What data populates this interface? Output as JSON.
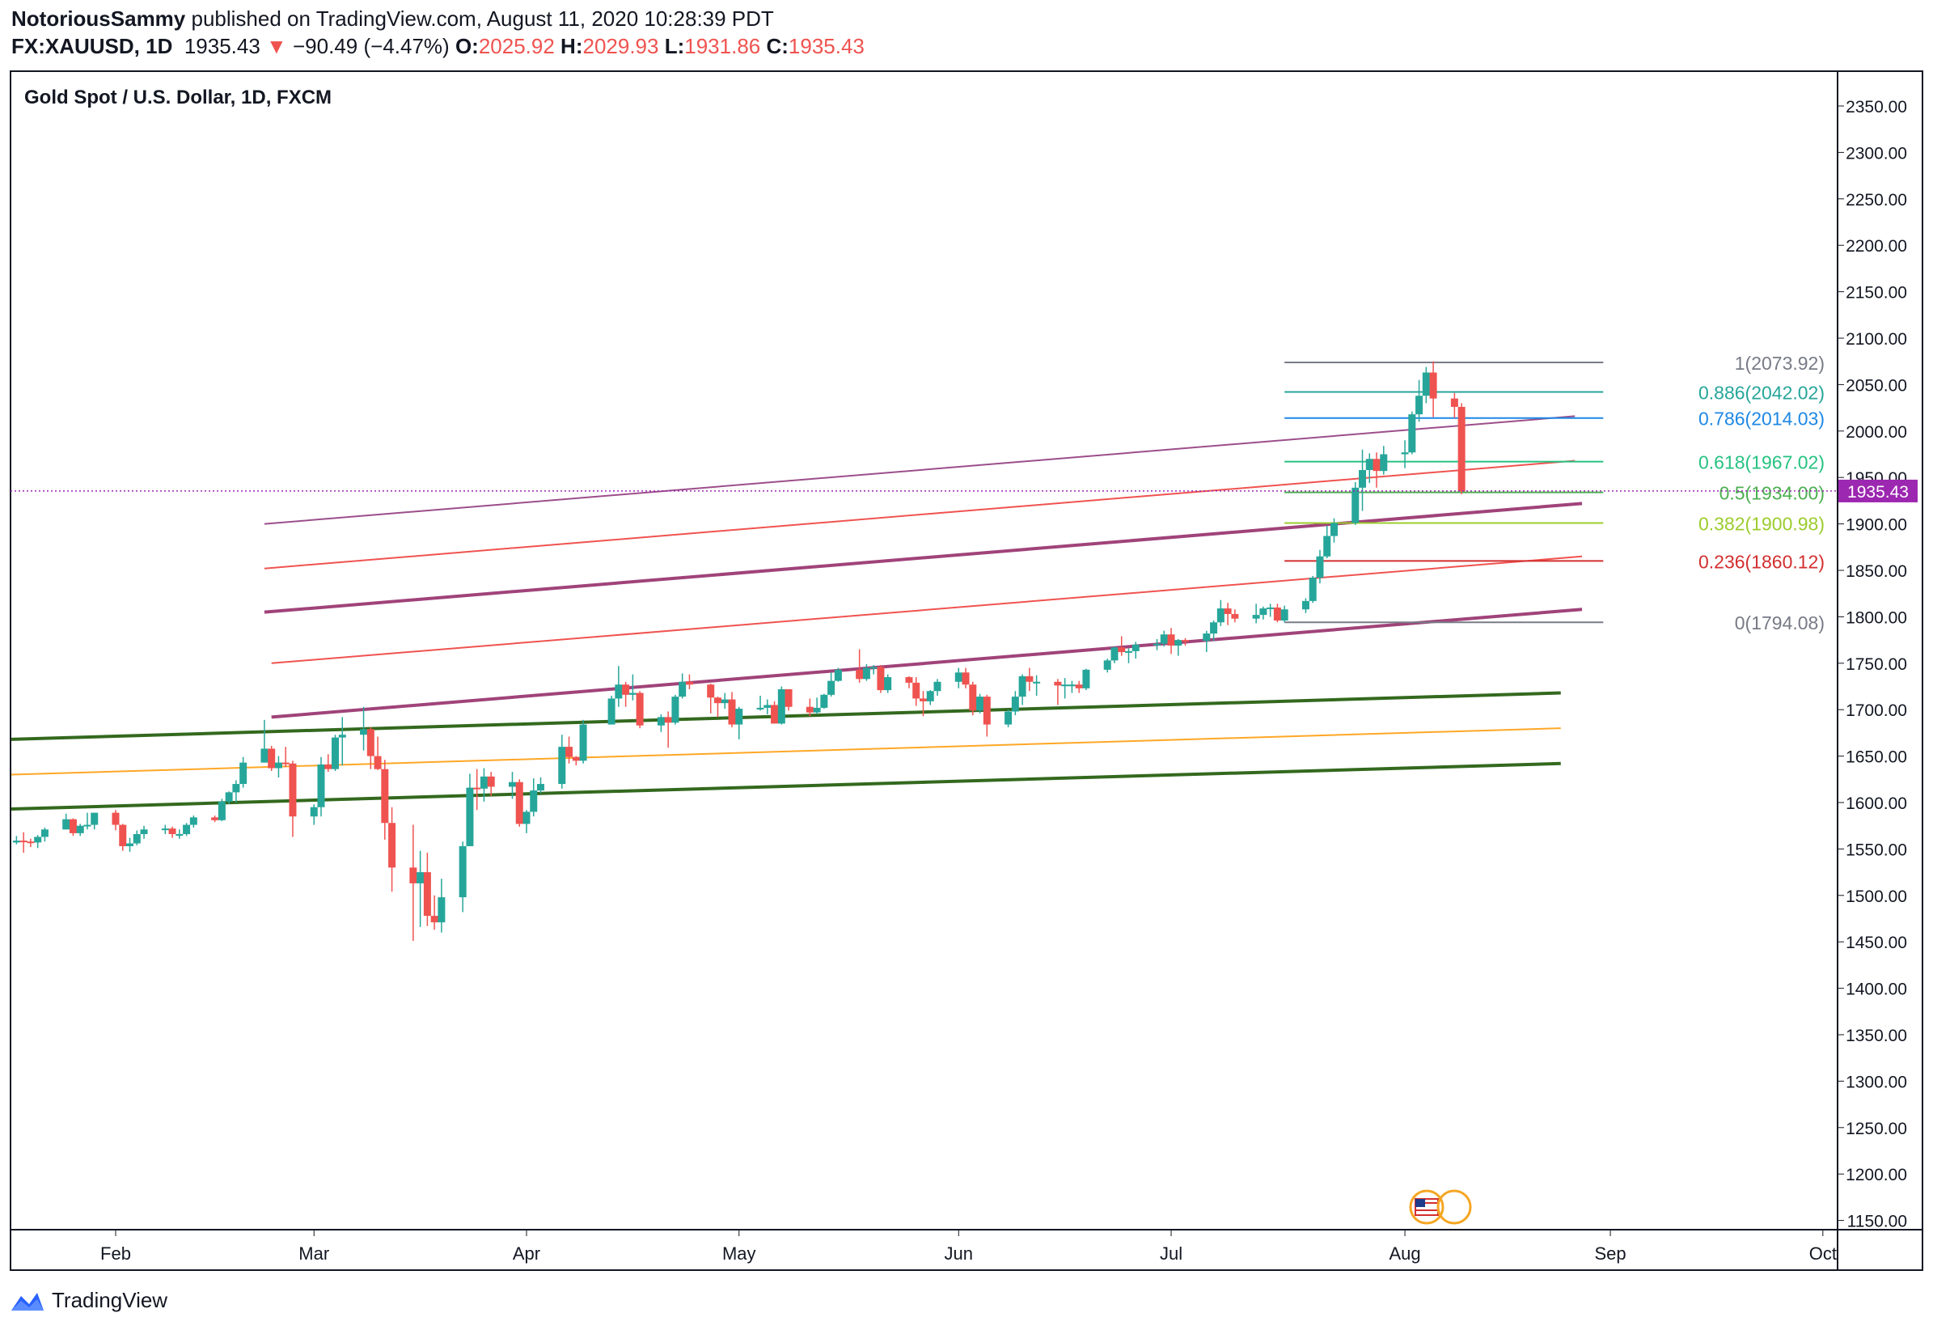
{
  "header": {
    "author": "NotoriousSammy",
    "published_text": "published on TradingView.com, August 11, 2020 10:28:39 PDT",
    "symbol_interval": "FX:XAUUSD, 1D",
    "last_price": "1935.43",
    "change_arrow": "▼",
    "change": "−90.49 (−4.47%)",
    "o_label": "O:",
    "o_value": "2025.92",
    "h_label": "H:",
    "h_value": "2029.93",
    "l_label": "L:",
    "l_value": "1931.86",
    "c_label": "C:",
    "c_value": "1935.43"
  },
  "footer": {
    "brand": "TradingView"
  },
  "colors": {
    "up": "#26a69a",
    "down": "#ef5350",
    "price_label": "#9c27b0",
    "accent": "#2962ff"
  },
  "chart_data": {
    "type": "candlestick",
    "title": "Gold Spot / U.S. Dollar, 1D, FXCM",
    "ylim": [
      1130,
      2380
    ],
    "y_ticks": [
      "2350.00",
      "2300.00",
      "2250.00",
      "2200.00",
      "2150.00",
      "2100.00",
      "2050.00",
      "2000.00",
      "1950.00",
      "1900.00",
      "1850.00",
      "1800.00",
      "1750.00",
      "1700.00",
      "1650.00",
      "1600.00",
      "1550.00",
      "1500.00",
      "1450.00",
      "1400.00",
      "1350.00",
      "1300.00",
      "1250.00",
      "1200.00",
      "1150.00"
    ],
    "x_ticks": [
      {
        "label": "Feb",
        "date": "2020-02-03"
      },
      {
        "label": "Mar",
        "date": "2020-03-02"
      },
      {
        "label": "Apr",
        "date": "2020-04-01"
      },
      {
        "label": "May",
        "date": "2020-05-01"
      },
      {
        "label": "Jun",
        "date": "2020-06-01"
      },
      {
        "label": "Jul",
        "date": "2020-07-01"
      },
      {
        "label": "Aug",
        "date": "2020-08-03"
      },
      {
        "label": "Sep",
        "date": "2020-09-01"
      },
      {
        "label": "Oct",
        "date": "2020-10-01"
      }
    ],
    "current_price": {
      "value": 1935.43,
      "label": "1935.43"
    },
    "fib_levels": [
      {
        "label": "1(2073.92)",
        "value": 2073.92,
        "color": "#787b86"
      },
      {
        "label": "0.886(2042.02)",
        "value": 2042.02,
        "color": "#26a69a"
      },
      {
        "label": "0.786(2014.03)",
        "value": 2014.03,
        "color": "#1e88e5"
      },
      {
        "label": "0.618(1967.02)",
        "value": 1967.02,
        "color": "#26c281"
      },
      {
        "label": "0.5(1934.00)",
        "value": 1934.0,
        "color": "#4caf50"
      },
      {
        "label": "0.382(1900.98)",
        "value": 1900.98,
        "color": "#9ccc2e"
      },
      {
        "label": "0.236(1860.12)",
        "value": 1860.12,
        "color": "#d32f2f"
      },
      {
        "label": "0(1794.08)",
        "value": 1794.08,
        "color": "#787b86"
      }
    ],
    "fib_range": {
      "start": "2020-07-17",
      "end": "2020-08-31"
    },
    "trend_lines": [
      {
        "from": [
          "2020-02-24",
          1900
        ],
        "to": [
          "2020-08-27",
          2016
        ],
        "color": "#9c4e8a",
        "width": 2
      },
      {
        "from": [
          "2020-02-24",
          1852
        ],
        "to": [
          "2020-08-27",
          1968
        ],
        "color": "#ef5350",
        "width": 2
      },
      {
        "from": [
          "2020-02-24",
          1805
        ],
        "to": [
          "2020-08-28",
          1922
        ],
        "color": "#a0437a",
        "width": 4
      },
      {
        "from": [
          "2020-02-25",
          1750
        ],
        "to": [
          "2020-08-28",
          1865
        ],
        "color": "#ef5350",
        "width": 2
      },
      {
        "from": [
          "2020-02-25",
          1692
        ],
        "to": [
          "2020-08-28",
          1808
        ],
        "color": "#a0437a",
        "width": 4
      },
      {
        "from": [
          "2020-01-01",
          1668
        ],
        "to": [
          "2020-08-25",
          1718
        ],
        "color": "#33691e",
        "width": 4
      },
      {
        "from": [
          "2020-01-01",
          1630
        ],
        "to": [
          "2020-08-25",
          1680
        ],
        "color": "#ffa726",
        "width": 2
      },
      {
        "from": [
          "2020-01-01",
          1593
        ],
        "to": [
          "2020-08-25",
          1642
        ],
        "color": "#33691e",
        "width": 4
      }
    ],
    "ohlc": [
      [
        "2020-01-02",
        1518,
        1529,
        1512,
        1527
      ],
      [
        "2020-01-03",
        1527,
        1553,
        1525,
        1551
      ],
      [
        "2020-01-06",
        1551,
        1575,
        1550,
        1567
      ],
      [
        "2020-01-07",
        1567,
        1576,
        1561,
        1573
      ],
      [
        "2020-01-08",
        1573,
        1611,
        1556,
        1556
      ],
      [
        "2020-01-09",
        1556,
        1559,
        1542,
        1552
      ],
      [
        "2020-01-10",
        1552,
        1562,
        1549,
        1560
      ],
      [
        "2020-01-13",
        1560,
        1562,
        1536,
        1547
      ],
      [
        "2020-01-14",
        1547,
        1549,
        1536,
        1545
      ],
      [
        "2020-01-15",
        1545,
        1559,
        1540,
        1555
      ],
      [
        "2020-01-16",
        1555,
        1558,
        1547,
        1551
      ],
      [
        "2020-01-17",
        1551,
        1562,
        1548,
        1557
      ],
      [
        "2020-01-20",
        1557,
        1564,
        1555,
        1559
      ],
      [
        "2020-01-21",
        1559,
        1568,
        1546,
        1558
      ],
      [
        "2020-01-22",
        1558,
        1561,
        1552,
        1557
      ],
      [
        "2020-01-23",
        1557,
        1565,
        1551,
        1563
      ],
      [
        "2020-01-24",
        1563,
        1573,
        1558,
        1571
      ],
      [
        "2020-01-27",
        1571,
        1588,
        1571,
        1582
      ],
      [
        "2020-01-28",
        1582,
        1583,
        1564,
        1567
      ],
      [
        "2020-01-29",
        1567,
        1577,
        1564,
        1575
      ],
      [
        "2020-01-30",
        1575,
        1589,
        1571,
        1576
      ],
      [
        "2020-01-31",
        1576,
        1589,
        1571,
        1589
      ],
      [
        "2020-02-03",
        1589,
        1592,
        1570,
        1576
      ],
      [
        "2020-02-04",
        1576,
        1577,
        1548,
        1553
      ],
      [
        "2020-02-05",
        1553,
        1562,
        1547,
        1556
      ],
      [
        "2020-02-06",
        1556,
        1570,
        1554,
        1566
      ],
      [
        "2020-02-07",
        1566,
        1575,
        1561,
        1571
      ],
      [
        "2020-02-10",
        1571,
        1576,
        1566,
        1572
      ],
      [
        "2020-02-11",
        1572,
        1574,
        1562,
        1566
      ],
      [
        "2020-02-12",
        1566,
        1571,
        1561,
        1566
      ],
      [
        "2020-02-13",
        1566,
        1578,
        1564,
        1576
      ],
      [
        "2020-02-14",
        1576,
        1586,
        1573,
        1584
      ],
      [
        "2020-02-17",
        1584,
        1586,
        1579,
        1581
      ],
      [
        "2020-02-18",
        1581,
        1604,
        1580,
        1601
      ],
      [
        "2020-02-19",
        1601,
        1612,
        1598,
        1611
      ],
      [
        "2020-02-20",
        1611,
        1624,
        1600,
        1620
      ],
      [
        "2020-02-21",
        1620,
        1649,
        1616,
        1643
      ],
      [
        "2020-02-24",
        1643,
        1689,
        1643,
        1658
      ],
      [
        "2020-02-25",
        1658,
        1661,
        1634,
        1637
      ],
      [
        "2020-02-26",
        1637,
        1650,
        1627,
        1643
      ],
      [
        "2020-02-27",
        1643,
        1660,
        1638,
        1642
      ],
      [
        "2020-02-28",
        1642,
        1645,
        1563,
        1585
      ],
      [
        "2020-03-02",
        1585,
        1598,
        1576,
        1595
      ],
      [
        "2020-03-03",
        1595,
        1649,
        1585,
        1641
      ],
      [
        "2020-03-04",
        1641,
        1652,
        1633,
        1636
      ],
      [
        "2020-03-05",
        1636,
        1673,
        1634,
        1670
      ],
      [
        "2020-03-06",
        1670,
        1692,
        1640,
        1673
      ],
      [
        "2020-03-09",
        1673,
        1703,
        1656,
        1679
      ],
      [
        "2020-03-10",
        1679,
        1681,
        1636,
        1650
      ],
      [
        "2020-03-11",
        1650,
        1671,
        1635,
        1636
      ],
      [
        "2020-03-12",
        1636,
        1646,
        1560,
        1578
      ],
      [
        "2020-03-13",
        1578,
        1595,
        1504,
        1530
      ],
      [
        "2020-03-16",
        1530,
        1576,
        1451,
        1513
      ],
      [
        "2020-03-17",
        1513,
        1548,
        1466,
        1525
      ],
      [
        "2020-03-18",
        1525,
        1546,
        1467,
        1478
      ],
      [
        "2020-03-19",
        1478,
        1500,
        1463,
        1471
      ],
      [
        "2020-03-20",
        1471,
        1518,
        1460,
        1498
      ],
      [
        "2020-03-23",
        1498,
        1558,
        1482,
        1553
      ],
      [
        "2020-03-24",
        1553,
        1631,
        1553,
        1616
      ],
      [
        "2020-03-25",
        1616,
        1636,
        1592,
        1615
      ],
      [
        "2020-03-26",
        1615,
        1637,
        1601,
        1628
      ],
      [
        "2020-03-27",
        1628,
        1633,
        1607,
        1617
      ],
      [
        "2020-03-30",
        1617,
        1633,
        1604,
        1622
      ],
      [
        "2020-03-31",
        1622,
        1625,
        1574,
        1577
      ],
      [
        "2020-04-01",
        1577,
        1592,
        1567,
        1590
      ],
      [
        "2020-04-02",
        1590,
        1626,
        1585,
        1613
      ],
      [
        "2020-04-03",
        1613,
        1627,
        1610,
        1620
      ],
      [
        "2020-04-06",
        1620,
        1673,
        1615,
        1660
      ],
      [
        "2020-04-07",
        1660,
        1671,
        1642,
        1649
      ],
      [
        "2020-04-08",
        1649,
        1650,
        1640,
        1645
      ],
      [
        "2020-04-09",
        1645,
        1689,
        1642,
        1684
      ],
      [
        "2020-04-13",
        1684,
        1715,
        1684,
        1712
      ],
      [
        "2020-04-14",
        1712,
        1747,
        1703,
        1727
      ],
      [
        "2020-04-15",
        1727,
        1730,
        1703,
        1716
      ],
      [
        "2020-04-16",
        1716,
        1738,
        1710,
        1718
      ],
      [
        "2020-04-17",
        1718,
        1720,
        1680,
        1683
      ],
      [
        "2020-04-20",
        1683,
        1695,
        1676,
        1692
      ],
      [
        "2020-04-21",
        1692,
        1698,
        1659,
        1686
      ],
      [
        "2020-04-22",
        1686,
        1716,
        1684,
        1714
      ],
      [
        "2020-04-23",
        1714,
        1739,
        1712,
        1730
      ],
      [
        "2020-04-24",
        1730,
        1738,
        1722,
        1727
      ],
      [
        "2020-04-27",
        1727,
        1728,
        1696,
        1713
      ],
      [
        "2020-04-28",
        1713,
        1714,
        1692,
        1707
      ],
      [
        "2020-04-29",
        1707,
        1718,
        1701,
        1711
      ],
      [
        "2020-04-30",
        1711,
        1719,
        1681,
        1684
      ],
      [
        "2020-05-01",
        1684,
        1703,
        1668,
        1701
      ],
      [
        "2020-05-04",
        1701,
        1715,
        1699,
        1702
      ],
      [
        "2020-05-05",
        1702,
        1711,
        1695,
        1705
      ],
      [
        "2020-05-06",
        1705,
        1709,
        1685,
        1685
      ],
      [
        "2020-05-07",
        1685,
        1725,
        1684,
        1722
      ],
      [
        "2020-05-08",
        1722,
        1722,
        1699,
        1703
      ],
      [
        "2020-05-11",
        1703,
        1712,
        1693,
        1697
      ],
      [
        "2020-05-12",
        1697,
        1713,
        1695,
        1702
      ],
      [
        "2020-05-13",
        1702,
        1717,
        1701,
        1716
      ],
      [
        "2020-05-14",
        1716,
        1740,
        1714,
        1731
      ],
      [
        "2020-05-15",
        1731,
        1745,
        1730,
        1743
      ],
      [
        "2020-05-18",
        1743,
        1765,
        1729,
        1733
      ],
      [
        "2020-05-19",
        1733,
        1749,
        1731,
        1745
      ],
      [
        "2020-05-20",
        1745,
        1748,
        1738,
        1746
      ],
      [
        "2020-05-21",
        1746,
        1748,
        1718,
        1721
      ],
      [
        "2020-05-22",
        1721,
        1738,
        1718,
        1735
      ],
      [
        "2020-05-25",
        1735,
        1736,
        1723,
        1729
      ],
      [
        "2020-05-26",
        1729,
        1735,
        1704,
        1712
      ],
      [
        "2020-05-27",
        1712,
        1720,
        1693,
        1709
      ],
      [
        "2020-05-28",
        1709,
        1721,
        1705,
        1720
      ],
      [
        "2020-05-29",
        1720,
        1733,
        1715,
        1730
      ],
      [
        "2020-06-01",
        1730,
        1745,
        1723,
        1740
      ],
      [
        "2020-06-02",
        1740,
        1745,
        1723,
        1727
      ],
      [
        "2020-06-03",
        1727,
        1730,
        1694,
        1699
      ],
      [
        "2020-06-04",
        1699,
        1717,
        1696,
        1714
      ],
      [
        "2020-06-05",
        1714,
        1716,
        1671,
        1684
      ],
      [
        "2020-06-08",
        1684,
        1700,
        1681,
        1698
      ],
      [
        "2020-06-09",
        1698,
        1720,
        1694,
        1714
      ],
      [
        "2020-06-10",
        1714,
        1738,
        1705,
        1736
      ],
      [
        "2020-06-11",
        1736,
        1745,
        1720,
        1730
      ],
      [
        "2020-06-12",
        1730,
        1737,
        1715,
        1730
      ],
      [
        "2020-06-15",
        1730,
        1733,
        1705,
        1726
      ],
      [
        "2020-06-16",
        1726,
        1734,
        1712,
        1727
      ],
      [
        "2020-06-17",
        1727,
        1731,
        1718,
        1727
      ],
      [
        "2020-06-18",
        1727,
        1731,
        1718,
        1723
      ],
      [
        "2020-06-19",
        1723,
        1744,
        1721,
        1743
      ],
      [
        "2020-06-22",
        1743,
        1755,
        1740,
        1753
      ],
      [
        "2020-06-23",
        1753,
        1768,
        1750,
        1767
      ],
      [
        "2020-06-24",
        1767,
        1779,
        1758,
        1762
      ],
      [
        "2020-06-25",
        1762,
        1766,
        1750,
        1763
      ],
      [
        "2020-06-26",
        1763,
        1773,
        1755,
        1770
      ],
      [
        "2020-06-29",
        1770,
        1776,
        1764,
        1771
      ],
      [
        "2020-06-30",
        1771,
        1785,
        1768,
        1781
      ],
      [
        "2020-07-01",
        1781,
        1788,
        1760,
        1769
      ],
      [
        "2020-07-02",
        1769,
        1776,
        1758,
        1775
      ],
      [
        "2020-07-03",
        1775,
        1777,
        1769,
        1774
      ],
      [
        "2020-07-06",
        1774,
        1785,
        1762,
        1782
      ],
      [
        "2020-07-07",
        1782,
        1796,
        1774,
        1794
      ],
      [
        "2020-07-08",
        1794,
        1818,
        1790,
        1809
      ],
      [
        "2020-07-09",
        1809,
        1815,
        1791,
        1803
      ],
      [
        "2020-07-10",
        1803,
        1808,
        1794,
        1798
      ],
      [
        "2020-07-13",
        1798,
        1814,
        1793,
        1802
      ],
      [
        "2020-07-14",
        1802,
        1811,
        1797,
        1809
      ],
      [
        "2020-07-15",
        1809,
        1814,
        1800,
        1810
      ],
      [
        "2020-07-16",
        1810,
        1814,
        1794,
        1796
      ],
      [
        "2020-07-17",
        1796,
        1812,
        1794,
        1808
      ],
      [
        "2020-07-20",
        1808,
        1820,
        1804,
        1817
      ],
      [
        "2020-07-21",
        1817,
        1844,
        1815,
        1842
      ],
      [
        "2020-07-22",
        1842,
        1872,
        1836,
        1865
      ],
      [
        "2020-07-23",
        1865,
        1898,
        1863,
        1887
      ],
      [
        "2020-07-24",
        1887,
        1906,
        1880,
        1901
      ],
      [
        "2020-07-27",
        1901,
        1945,
        1899,
        1939
      ],
      [
        "2020-07-28",
        1939,
        1980,
        1914,
        1958
      ],
      [
        "2020-07-29",
        1958,
        1976,
        1944,
        1970
      ],
      [
        "2020-07-30",
        1970,
        1977,
        1939,
        1957
      ],
      [
        "2020-07-31",
        1957,
        1984,
        1953,
        1975
      ],
      [
        "2020-08-03",
        1975,
        1990,
        1960,
        1977
      ],
      [
        "2020-08-04",
        1977,
        2021,
        1975,
        2018
      ],
      [
        "2020-08-05",
        2018,
        2055,
        2010,
        2038
      ],
      [
        "2020-08-06",
        2038,
        2069,
        2030,
        2063
      ],
      [
        "2020-08-07",
        2063,
        2075,
        2015,
        2035
      ],
      [
        "2020-08-10",
        2035,
        2041,
        2014,
        2026
      ],
      [
        "2020-08-11",
        2026,
        2030,
        1932,
        1935
      ]
    ]
  }
}
